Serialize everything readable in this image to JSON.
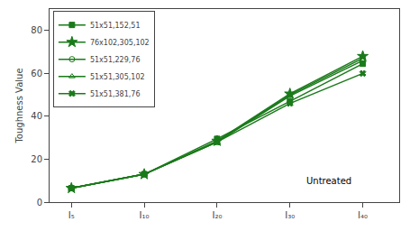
{
  "chart_data": {
    "type": "line",
    "categories": [
      "I₅",
      "I₁₀",
      "I₂₀",
      "I₃₀",
      "I₄₀"
    ],
    "series": [
      {
        "name": "51x51,152,51",
        "color": "#1a7a1a",
        "marker": "square",
        "values": [
          6.5,
          13.0,
          29.5,
          47.0,
          64.5
        ]
      },
      {
        "name": "76x102,305,102",
        "color": "#1a7a1a",
        "marker": "star",
        "values": [
          6.5,
          13.0,
          28.5,
          50.5,
          68.0
        ]
      },
      {
        "name": "51x51,229,76",
        "color": "#1a7a1a",
        "marker": "circle-open",
        "values": [
          6.5,
          13.0,
          28.0,
          50.0,
          67.0
        ]
      },
      {
        "name": "51x51,305,102",
        "color": "#1a7a1a",
        "marker": "triangle-up-open",
        "values": [
          6.5,
          13.0,
          28.0,
          49.5,
          66.0
        ]
      },
      {
        "name": "51x51,381,76",
        "color": "#1a7a1a",
        "marker": "x",
        "values": [
          6.5,
          13.0,
          28.0,
          46.0,
          60.0
        ]
      }
    ],
    "ylabel": "Toughness Value",
    "ylim": [
      0,
      90
    ],
    "yticks": [
      0,
      20,
      40,
      60,
      80
    ],
    "annotations": [
      "Untreated"
    ],
    "legend": "upper left",
    "grid": false
  }
}
